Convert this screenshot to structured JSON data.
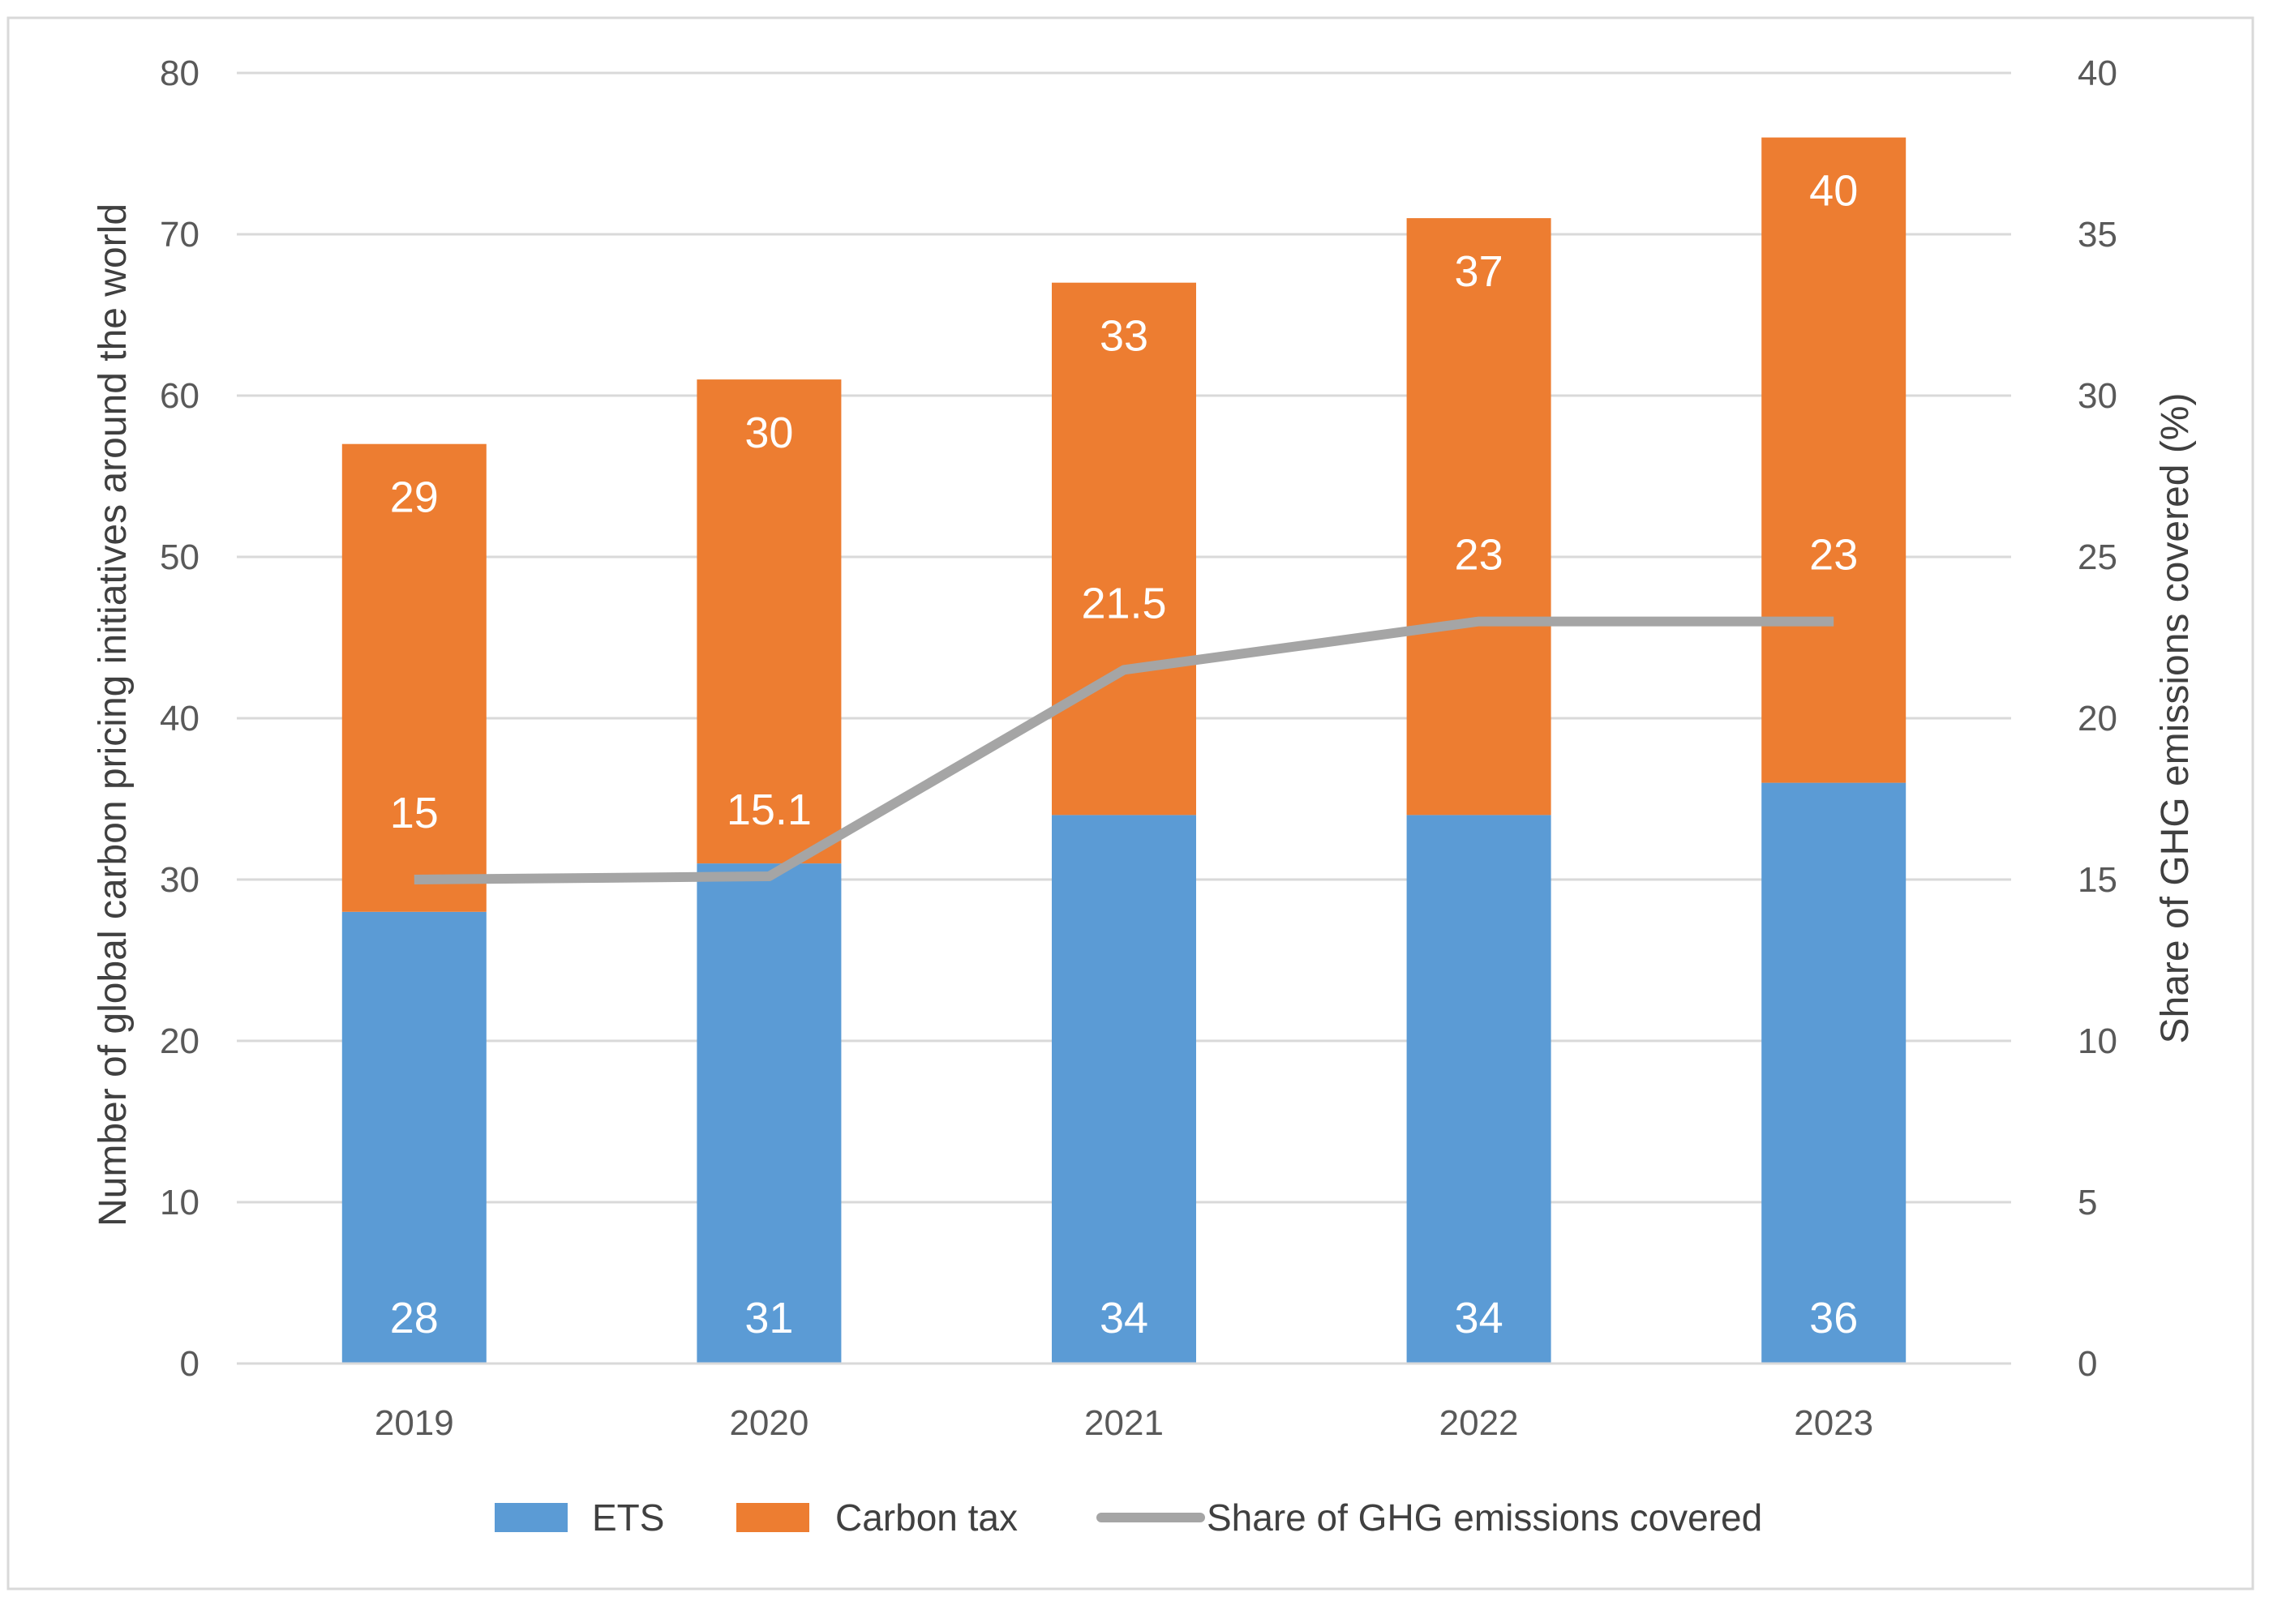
{
  "chart_data": {
    "type": "bar",
    "stacked": true,
    "categories": [
      "2019",
      "2020",
      "2021",
      "2022",
      "2023"
    ],
    "series": [
      {
        "name": "ETS",
        "kind": "bar",
        "axis": "left",
        "color": "#5B9BD5",
        "values": [
          28,
          31,
          34,
          34,
          36
        ]
      },
      {
        "name": "Carbon tax",
        "kind": "bar",
        "axis": "left",
        "color": "#ED7D31",
        "values": [
          29,
          30,
          33,
          37,
          40
        ]
      },
      {
        "name": "Share of GHG emissions covered",
        "kind": "line",
        "axis": "right",
        "color": "#A5A5A5",
        "values": [
          15,
          15.1,
          21.5,
          23,
          23
        ]
      }
    ],
    "ylabel": "Number of global carbon pricing initiatives around the world",
    "y2label": "Share of GHG emissions covered (%)",
    "ylim": [
      0,
      80
    ],
    "y2lim": [
      0,
      40
    ],
    "yticks": [
      "0",
      "10",
      "20",
      "30",
      "40",
      "50",
      "60",
      "70",
      "80"
    ],
    "y2ticks": [
      "0",
      "5",
      "10",
      "15",
      "20",
      "25",
      "30",
      "35",
      "40"
    ],
    "grid": true,
    "legend_position": "bottom"
  }
}
